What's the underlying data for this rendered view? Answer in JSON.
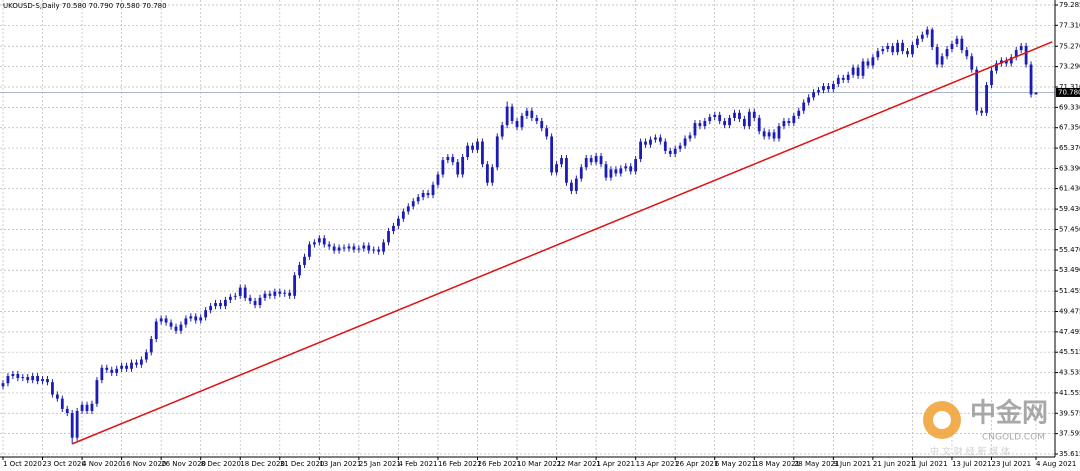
{
  "chart_data": {
    "type": "candlestick",
    "title": "UKOUSD-S,Daily  70.580 70.790 70.580 70.780",
    "color": "#1c1cb4",
    "grid": true,
    "ylim": [
      35.323,
      79.577
    ],
    "yticks": [
      79.285,
      {
        "value": 77.31,
        "label": "77.310"
      },
      {
        "value": 75.27,
        "label": "75.270"
      },
      {
        "value": 73.29,
        "label": "73.290"
      },
      {
        "value": 71.31,
        "label": "71.310"
      },
      {
        "value": 69.33,
        "label": "69.330"
      },
      {
        "value": 67.35,
        "label": "67.350"
      },
      {
        "value": 65.37,
        "label": "65.370"
      },
      {
        "value": 63.39,
        "label": "63.390"
      },
      {
        "value": 61.43,
        "label": "61.430"
      },
      {
        "value": 59.43,
        "label": "59.430"
      },
      {
        "value": 57.45,
        "label": "57.450"
      },
      {
        "value": 55.47,
        "label": "55.470"
      },
      {
        "value": 53.49,
        "label": "53.490"
      },
      51.455,
      49.475,
      47.495,
      45.515,
      43.535,
      41.555,
      39.575,
      37.595,
      35.615
    ],
    "current_price": {
      "value": 70.78,
      "label": "70.780",
      "line_color": "#a9b6cc"
    },
    "trendline": {
      "color": "#e01010",
      "x": [
        14,
        212.3
      ],
      "y": [
        36.6,
        75.7
      ]
    },
    "categories": [
      "1 Oct 2020",
      null,
      null,
      null,
      null,
      null,
      null,
      null,
      "23 Oct 2020",
      null,
      null,
      null,
      null,
      null,
      null,
      null,
      "4 Nov 2020",
      null,
      null,
      null,
      null,
      null,
      null,
      null,
      "16 Nov 2020",
      null,
      null,
      null,
      null,
      null,
      null,
      null,
      "26 Nov 2020",
      null,
      null,
      null,
      null,
      null,
      null,
      null,
      "8 Dec 2020",
      null,
      null,
      null,
      null,
      null,
      null,
      null,
      "18 Dec 2020",
      null,
      null,
      null,
      null,
      null,
      null,
      null,
      "31 Dec 2020",
      null,
      null,
      null,
      null,
      null,
      null,
      null,
      "13 Jan 2021",
      null,
      null,
      null,
      null,
      null,
      null,
      null,
      "25 Jan 2021",
      null,
      null,
      null,
      null,
      null,
      null,
      null,
      "4 Feb 2021",
      null,
      null,
      null,
      null,
      null,
      null,
      null,
      "16 Feb 2021",
      null,
      null,
      null,
      null,
      null,
      null,
      null,
      "26 Feb 2021",
      null,
      null,
      null,
      null,
      null,
      null,
      null,
      "10 Mar 2021",
      null,
      null,
      null,
      null,
      null,
      null,
      null,
      "22 Mar 2021",
      null,
      null,
      null,
      null,
      null,
      null,
      null,
      "1 Apr 2021",
      null,
      null,
      null,
      null,
      null,
      null,
      null,
      "13 Apr 2021",
      null,
      null,
      null,
      null,
      null,
      null,
      null,
      "26 Apr 2021",
      null,
      null,
      null,
      null,
      null,
      null,
      null,
      "6 May 2021",
      null,
      null,
      null,
      null,
      null,
      null,
      null,
      "18 May 2021",
      null,
      null,
      null,
      null,
      null,
      null,
      null,
      "28 May 2021",
      null,
      null,
      null,
      null,
      null,
      null,
      null,
      "9 Jun 2021",
      null,
      null,
      null,
      null,
      null,
      null,
      null,
      "21 Jun 2021",
      null,
      null,
      null,
      null,
      null,
      null,
      null,
      "1 Jul 2021",
      null,
      null,
      null,
      null,
      null,
      null,
      null,
      "13 Jul 2021",
      null,
      null,
      null,
      null,
      null,
      null,
      null,
      "23 Jul 2021",
      null,
      null,
      null,
      null,
      null,
      null,
      null,
      null,
      "4 Aug 2021"
    ],
    "open": [
      42.2,
      42.5,
      43.2,
      43.4,
      43.0,
      43.1,
      42.8,
      43.2,
      42.7,
      42.9,
      42.6,
      41.4,
      41.0,
      40.0,
      39.6,
      37.2,
      39.8,
      40.4,
      39.8,
      40.5,
      42.8,
      44.0,
      43.8,
      43.5,
      43.9,
      44.2,
      43.9,
      44.5,
      44.3,
      44.8,
      45.5,
      46.8,
      48.5,
      48.8,
      48.4,
      48.0,
      47.6,
      48.2,
      48.8,
      49.0,
      48.6,
      48.9,
      49.6,
      50.0,
      50.3,
      50.0,
      50.6,
      50.9,
      51.0,
      51.8,
      50.8,
      50.5,
      50.1,
      50.8,
      51.2,
      51.0,
      51.4,
      51.2,
      51.3,
      51.0,
      53.0,
      54.0,
      54.8,
      56.0,
      56.2,
      56.6,
      56.0,
      55.8,
      55.4,
      55.7,
      55.6,
      55.8,
      55.5,
      55.6,
      55.9,
      55.4,
      55.5,
      55.3,
      56.2,
      57.3,
      57.8,
      58.5,
      59.2,
      59.7,
      60.2,
      60.6,
      61.0,
      60.8,
      61.8,
      62.8,
      64.2,
      64.5,
      64.0,
      62.8,
      64.5,
      65.6,
      65.2,
      66.0,
      63.8,
      62.0,
      63.5,
      66.5,
      67.6,
      69.4,
      68.0,
      67.4,
      68.5,
      69.0,
      68.3,
      68.0,
      67.3,
      66.5,
      63.0,
      63.8,
      64.4,
      62.0,
      61.2,
      62.4,
      63.5,
      64.4,
      64.0,
      64.6,
      63.8,
      62.5,
      63.3,
      62.9,
      63.4,
      63.6,
      63.1,
      64.3,
      66.0,
      65.7,
      66.2,
      66.4,
      66.0,
      65.1,
      64.8,
      65.3,
      65.6,
      66.3,
      66.6,
      67.8,
      67.5,
      68.0,
      68.4,
      68.6,
      68.0,
      67.6,
      68.3,
      68.8,
      68.2,
      67.5,
      68.9,
      68.3,
      67.0,
      66.5,
      66.9,
      66.3,
      67.5,
      68.0,
      67.8,
      68.5,
      69.0,
      69.8,
      70.3,
      70.8,
      71.0,
      71.4,
      71.1,
      71.6,
      72.2,
      72.0,
      72.5,
      73.2,
      72.4,
      73.8,
      73.4,
      74.2,
      74.8,
      75.0,
      75.3,
      74.7,
      75.6,
      74.8,
      74.5,
      75.4,
      76.0,
      76.4,
      76.9,
      75.2,
      73.5,
      74.3,
      75.0,
      75.5,
      76.0,
      74.9,
      74.3,
      73.0,
      69.0,
      68.8,
      71.5,
      72.9,
      73.6,
      73.9,
      73.6,
      74.2,
      74.9,
      75.3,
      73.5,
      70.58
    ],
    "high": [
      42.8,
      43.5,
      43.7,
      43.7,
      43.4,
      43.4,
      43.5,
      43.5,
      43.2,
      43.2,
      42.9,
      41.7,
      41.3,
      40.3,
      39.9,
      40.1,
      40.7,
      40.7,
      40.8,
      43.1,
      44.3,
      44.3,
      44.1,
      44.2,
      44.5,
      44.5,
      44.8,
      44.8,
      45.1,
      45.8,
      47.1,
      48.8,
      49.1,
      49.1,
      48.7,
      48.3,
      48.5,
      49.1,
      49.3,
      49.3,
      49.2,
      49.9,
      50.3,
      50.6,
      50.6,
      50.9,
      51.2,
      51.3,
      52.1,
      52.1,
      51.1,
      50.8,
      51.1,
      51.5,
      51.5,
      51.7,
      51.7,
      51.6,
      51.6,
      53.3,
      54.3,
      55.1,
      56.3,
      56.5,
      56.9,
      56.9,
      56.3,
      56.1,
      56.0,
      56.0,
      56.1,
      56.1,
      55.9,
      56.2,
      56.2,
      55.8,
      55.8,
      56.5,
      57.6,
      58.1,
      58.8,
      59.5,
      60.0,
      60.5,
      60.9,
      61.3,
      61.3,
      62.1,
      63.1,
      64.5,
      64.8,
      64.8,
      64.3,
      64.8,
      65.9,
      65.9,
      66.3,
      66.3,
      64.1,
      63.8,
      66.8,
      67.9,
      69.9,
      69.7,
      68.3,
      68.8,
      69.3,
      69.3,
      68.6,
      68.3,
      67.6,
      66.8,
      64.1,
      64.7,
      64.7,
      62.3,
      62.7,
      63.8,
      64.7,
      64.7,
      64.9,
      64.9,
      64.1,
      63.6,
      63.6,
      63.7,
      63.9,
      63.9,
      64.6,
      66.3,
      66.3,
      66.5,
      66.7,
      66.7,
      66.3,
      65.4,
      65.6,
      65.9,
      66.6,
      66.9,
      68.1,
      68.1,
      68.3,
      68.7,
      68.9,
      68.9,
      68.3,
      68.6,
      69.1,
      69.1,
      68.5,
      69.2,
      69.2,
      68.6,
      67.3,
      67.2,
      67.2,
      67.8,
      68.3,
      68.3,
      68.8,
      69.3,
      70.1,
      70.6,
      71.1,
      71.3,
      71.7,
      71.7,
      71.9,
      72.5,
      72.5,
      72.8,
      73.5,
      73.5,
      74.1,
      74.1,
      74.5,
      75.1,
      75.3,
      75.6,
      75.6,
      75.9,
      75.9,
      75.1,
      75.7,
      76.3,
      76.7,
      77.2,
      77.1,
      75.5,
      74.6,
      75.3,
      75.8,
      76.3,
      76.3,
      75.2,
      74.6,
      73.3,
      69.3,
      71.8,
      73.2,
      73.9,
      74.2,
      74.2,
      74.5,
      75.2,
      75.6,
      75.6,
      73.8,
      70.79
    ],
    "low": [
      41.9,
      42.2,
      42.9,
      42.7,
      42.7,
      42.5,
      42.5,
      42.4,
      42.4,
      42.3,
      41.1,
      40.7,
      39.7,
      39.3,
      36.6,
      36.9,
      39.5,
      39.5,
      39.5,
      40.2,
      42.5,
      43.5,
      43.2,
      43.2,
      43.6,
      43.6,
      43.6,
      44.0,
      44.0,
      44.5,
      45.2,
      46.5,
      48.2,
      48.1,
      47.7,
      47.3,
      47.3,
      47.9,
      48.5,
      48.3,
      48.3,
      48.6,
      49.3,
      49.7,
      49.7,
      49.7,
      50.3,
      50.6,
      50.7,
      50.5,
      50.2,
      49.8,
      49.8,
      50.5,
      50.7,
      50.7,
      50.9,
      50.9,
      50.7,
      50.7,
      52.7,
      53.7,
      54.5,
      55.7,
      55.9,
      55.7,
      55.5,
      55.1,
      55.1,
      55.3,
      55.3,
      55.2,
      55.2,
      55.3,
      55.1,
      55.1,
      55.0,
      55.0,
      55.9,
      57.0,
      57.5,
      58.2,
      58.9,
      59.4,
      59.9,
      60.3,
      60.5,
      60.5,
      61.5,
      62.5,
      63.9,
      63.7,
      62.5,
      62.5,
      64.2,
      64.9,
      64.9,
      63.5,
      61.7,
      61.7,
      63.2,
      66.2,
      67.3,
      67.7,
      67.1,
      67.1,
      68.2,
      68.0,
      67.7,
      67.0,
      66.2,
      62.7,
      62.7,
      63.5,
      61.7,
      60.9,
      60.9,
      62.1,
      63.2,
      63.7,
      63.7,
      63.5,
      62.2,
      62.2,
      62.6,
      62.6,
      63.1,
      62.8,
      62.8,
      64.0,
      65.4,
      65.4,
      65.9,
      65.7,
      64.8,
      64.5,
      64.5,
      65.0,
      65.3,
      66.0,
      66.3,
      67.2,
      67.2,
      67.7,
      68.1,
      67.7,
      67.3,
      67.3,
      68.0,
      67.9,
      67.2,
      67.2,
      68.0,
      66.7,
      66.2,
      66.2,
      66.0,
      66.0,
      67.2,
      67.5,
      67.5,
      68.2,
      68.7,
      69.5,
      70.0,
      70.5,
      70.7,
      70.8,
      70.8,
      71.3,
      71.7,
      71.7,
      72.2,
      72.1,
      72.1,
      73.1,
      73.1,
      73.9,
      74.5,
      74.7,
      74.4,
      74.4,
      74.5,
      74.2,
      74.2,
      75.1,
      75.7,
      76.1,
      74.9,
      73.2,
      73.2,
      74.0,
      74.7,
      75.2,
      74.6,
      74.0,
      72.7,
      68.6,
      68.5,
      68.5,
      71.2,
      72.6,
      73.3,
      73.3,
      73.3,
      73.9,
      74.6,
      73.2,
      70.28,
      70.58
    ],
    "close": [
      42.5,
      43.2,
      43.4,
      43.0,
      43.1,
      42.8,
      43.2,
      42.7,
      42.9,
      42.6,
      41.4,
      41.0,
      40.0,
      39.6,
      37.2,
      39.8,
      40.4,
      39.8,
      40.5,
      42.8,
      44.0,
      43.8,
      43.5,
      43.9,
      44.2,
      43.9,
      44.5,
      44.3,
      44.8,
      45.5,
      46.8,
      48.5,
      48.8,
      48.4,
      48.0,
      47.6,
      48.2,
      48.8,
      49.0,
      48.6,
      48.9,
      49.6,
      50.0,
      50.3,
      50.0,
      50.6,
      50.9,
      51.0,
      51.8,
      50.8,
      50.5,
      50.1,
      50.8,
      51.2,
      51.0,
      51.4,
      51.2,
      51.3,
      51.0,
      53.0,
      54.0,
      54.8,
      56.0,
      56.2,
      56.6,
      56.0,
      55.8,
      55.4,
      55.7,
      55.6,
      55.8,
      55.5,
      55.6,
      55.9,
      55.4,
      55.5,
      55.3,
      56.2,
      57.3,
      57.8,
      58.5,
      59.2,
      59.7,
      60.2,
      60.6,
      61.0,
      60.8,
      61.8,
      62.8,
      64.2,
      64.5,
      64.0,
      62.8,
      64.5,
      65.6,
      65.2,
      66.0,
      63.8,
      62.0,
      63.5,
      66.5,
      67.6,
      69.4,
      68.0,
      67.4,
      68.5,
      69.0,
      68.3,
      68.0,
      67.3,
      66.5,
      63.0,
      63.8,
      64.4,
      62.0,
      61.2,
      62.4,
      63.5,
      64.4,
      64.0,
      64.6,
      63.8,
      62.5,
      63.3,
      62.9,
      63.4,
      63.6,
      63.1,
      64.3,
      66.0,
      65.7,
      66.2,
      66.4,
      66.0,
      65.1,
      64.8,
      65.3,
      65.6,
      66.3,
      66.6,
      67.8,
      67.5,
      68.0,
      68.4,
      68.6,
      68.0,
      67.6,
      68.3,
      68.8,
      68.2,
      67.5,
      68.9,
      68.3,
      67.0,
      66.5,
      66.9,
      66.3,
      67.5,
      68.0,
      67.8,
      68.5,
      69.0,
      69.8,
      70.3,
      70.8,
      71.0,
      71.4,
      71.1,
      71.6,
      72.2,
      72.0,
      72.5,
      73.2,
      72.4,
      73.8,
      73.4,
      74.2,
      74.8,
      75.0,
      75.3,
      74.7,
      75.6,
      74.8,
      74.5,
      75.4,
      76.0,
      76.4,
      76.9,
      75.2,
      73.5,
      74.3,
      75.0,
      75.5,
      76.0,
      74.9,
      74.3,
      73.0,
      69.0,
      68.8,
      71.5,
      72.9,
      73.6,
      73.9,
      73.6,
      74.2,
      74.9,
      75.3,
      73.5,
      70.58,
      70.78
    ]
  },
  "watermark": {
    "brand": "中金网",
    "site": "CNGOLD.COM",
    "slogan": "中 文 财 经 新 媒 体"
  }
}
